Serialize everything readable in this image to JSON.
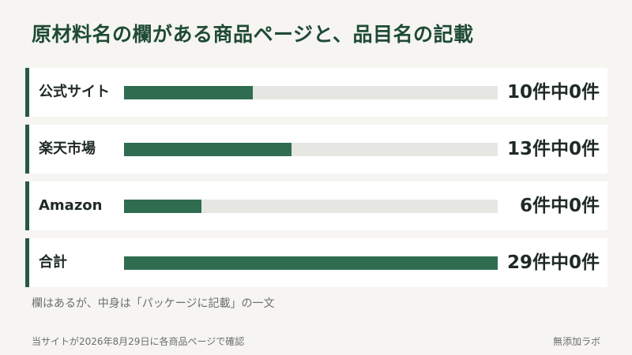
{
  "title": "原材料名の欄がある商品ページと、品目名の記載",
  "note": "欄はあるが、中身は「パッケージに記載」の一文",
  "footer": {
    "source": "当サイトが2026年8月29日に各商品ページで確認",
    "credit": "無添加ラボ"
  },
  "colors": {
    "accent": "#2f6c50",
    "track": "#e6e7e2",
    "title": "#1f4a36"
  },
  "chart_data": {
    "type": "bar",
    "orientation": "horizontal",
    "categories": [
      "公式サイト",
      "楽天市場",
      "Amazon",
      "合計"
    ],
    "values": [
      10,
      13,
      6,
      29
    ],
    "value_labels": [
      "10件中0件",
      "13件中0件",
      "6件中0件",
      "29件中0件"
    ],
    "xlim": [
      0,
      29
    ]
  }
}
